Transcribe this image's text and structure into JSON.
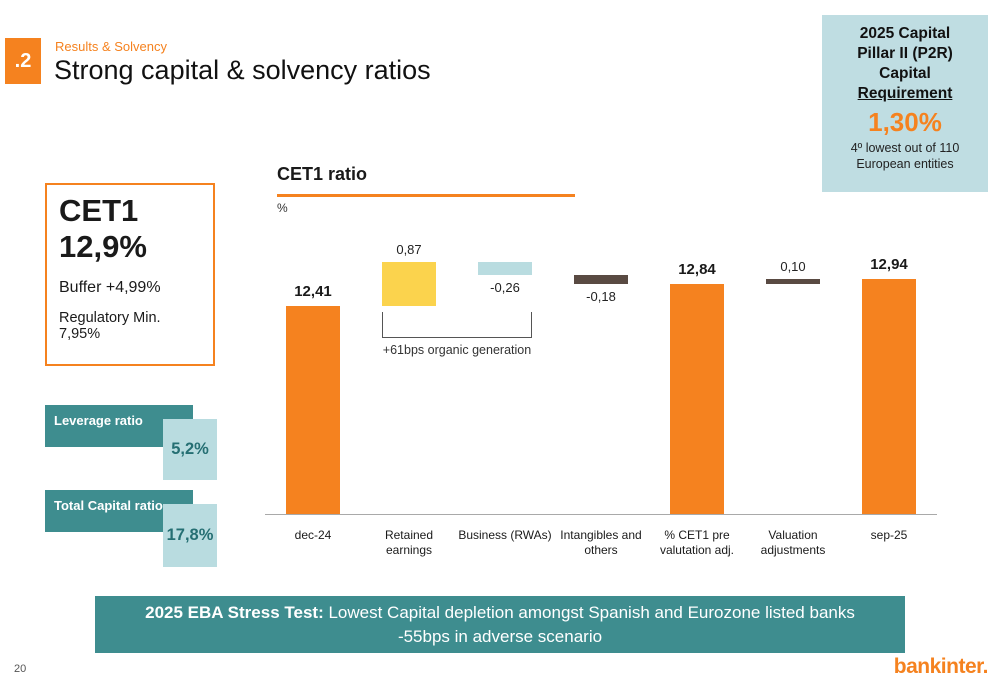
{
  "slide": {
    "number": ".2",
    "eyebrow": "Results & Solvency",
    "title": "Strong capital & solvency ratios",
    "page_number": "20",
    "logo_text": "bankinter."
  },
  "p2r_box": {
    "title_lines": [
      "2025 Capital",
      "Pillar II (P2R)",
      "Capital",
      "Requirement"
    ],
    "value": "1,30%",
    "note_lines": [
      "4º lowest out of 110",
      "European entities"
    ]
  },
  "cet1_box": {
    "title": "CET1",
    "value": "12,9%",
    "buffer": "Buffer +4,99%",
    "regulatory": "Regulatory Min. 7,95%"
  },
  "ratio_tiles": [
    {
      "label": "Leverage ratio",
      "value": "5,2%"
    },
    {
      "label": "Total Capital ratio",
      "value": "17,8%"
    }
  ],
  "chart_data": {
    "type": "waterfall",
    "title": "CET1 ratio",
    "unit": "%",
    "axis_min": 8.3,
    "axis_max": 14.2,
    "categories": [
      "dec-24",
      "Retained earnings",
      "Business (RWAs)",
      "Intangibles and others",
      "% CET1 pre valutation adj.",
      "Valuation adjustments",
      "sep-25"
    ],
    "bars": [
      {
        "category": "dec-24",
        "start": 0,
        "end": 12.41,
        "value_label": "12,41",
        "label_position": "above",
        "color": "orange",
        "kind": "total"
      },
      {
        "category": "Retained earnings",
        "start": 12.41,
        "end": 13.28,
        "value_label": "0,87",
        "label_position": "above",
        "color": "yellow",
        "kind": "increase"
      },
      {
        "category": "Business (RWAs)",
        "start": 13.28,
        "end": 13.02,
        "value_label": "-0,26",
        "label_position": "below",
        "color": "lightblue",
        "kind": "decrease"
      },
      {
        "category": "Intangibles and others",
        "start": 13.02,
        "end": 12.84,
        "value_label": "-0,18",
        "label_position": "below",
        "color": "dark",
        "kind": "decrease"
      },
      {
        "category": "% CET1 pre valutation adj.",
        "start": 0,
        "end": 12.84,
        "value_label": "12,84",
        "label_position": "above",
        "color": "orange",
        "kind": "total"
      },
      {
        "category": "Valuation adjustments",
        "start": 12.84,
        "end": 12.94,
        "value_label": "0,10",
        "label_position": "above",
        "color": "dark",
        "kind": "increase"
      },
      {
        "category": "sep-25",
        "start": 0,
        "end": 12.94,
        "value_label": "12,94",
        "label_position": "above",
        "color": "orange",
        "kind": "total"
      }
    ],
    "bracket": {
      "from_bar": 1,
      "to_bar": 2,
      "at_value": 12.41,
      "label": "+61bps organic generation"
    }
  },
  "banner": {
    "lead": "2025 EBA Stress Test:",
    "rest": " Lowest Capital depletion amongst Spanish and Eurozone listed banks",
    "line2": "-55bps in adverse scenario"
  },
  "colors": {
    "orange": "#F5821F",
    "yellow": "#FBD34D",
    "lightblue": "#B9DCE0",
    "dark": "#594A42",
    "teal": "#3E8D8F"
  }
}
